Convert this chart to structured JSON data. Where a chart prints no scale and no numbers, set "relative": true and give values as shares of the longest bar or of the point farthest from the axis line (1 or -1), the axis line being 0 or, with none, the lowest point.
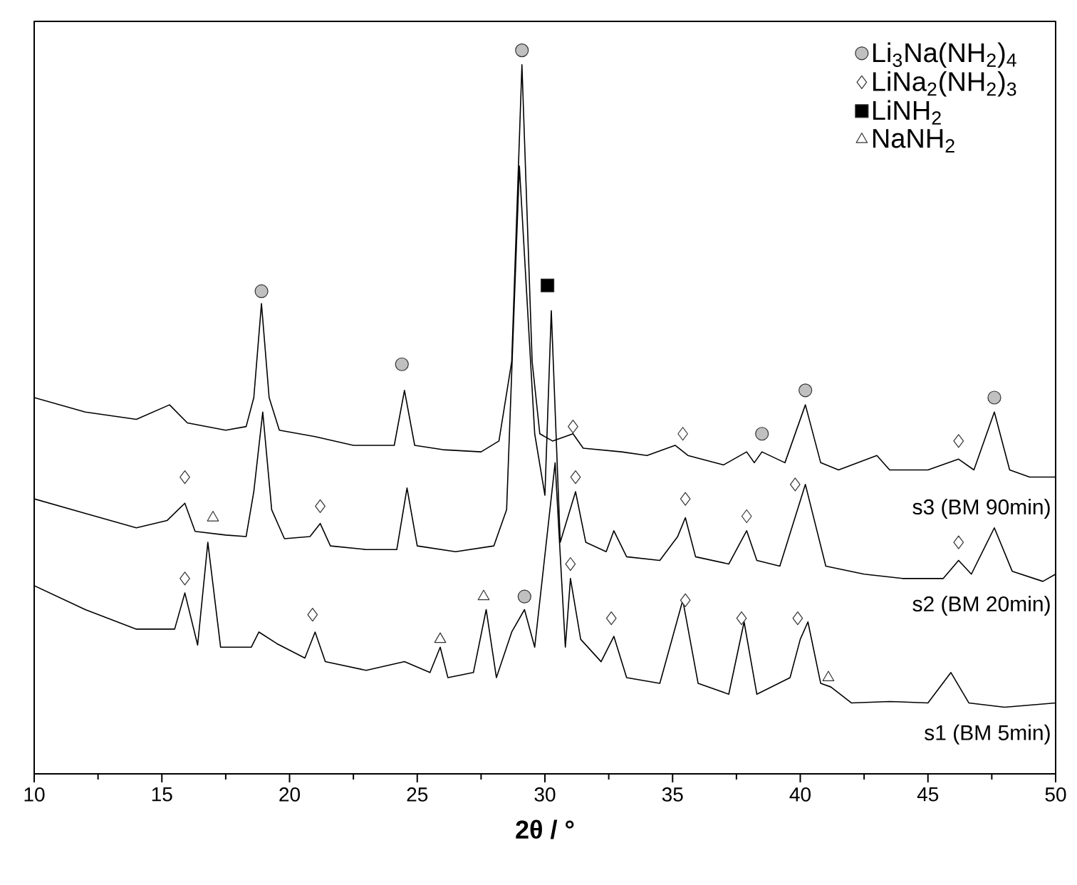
{
  "chart_data": {
    "type": "line",
    "relative": true,
    "xlabel": "2θ / °",
    "xlim": [
      10,
      50
    ],
    "xticks": [
      10,
      15,
      20,
      25,
      30,
      35,
      40,
      45,
      50
    ],
    "legend": "top right",
    "series": [
      {
        "name": "s3 (BM 90min)",
        "color": "#000000",
        "marker": "none",
        "x": [
          10,
          12,
          14,
          15.3,
          16,
          17.5,
          18.3,
          18.6,
          18.9,
          19.2,
          19.6,
          21,
          22.5,
          24.1,
          24.5,
          24.9,
          26,
          27.5,
          28.2,
          28.7,
          29.1,
          29.5,
          29.8,
          30.3,
          31.1,
          31.5,
          33,
          34,
          35.1,
          35.6,
          37,
          37.9,
          38.2,
          38.5,
          39.4,
          40.2,
          40.8,
          41.5,
          43,
          43.5,
          45,
          46.2,
          46.8,
          47.6,
          48.2,
          49,
          50
        ],
        "values": [
          0.52,
          0.5,
          0.49,
          0.51,
          0.485,
          0.475,
          0.48,
          0.52,
          0.65,
          0.52,
          0.475,
          0.466,
          0.454,
          0.454,
          0.53,
          0.454,
          0.448,
          0.445,
          0.46,
          0.57,
          0.98,
          0.57,
          0.47,
          0.46,
          0.47,
          0.45,
          0.445,
          0.44,
          0.454,
          0.44,
          0.427,
          0.445,
          0.43,
          0.445,
          0.43,
          0.51,
          0.43,
          0.42,
          0.44,
          0.42,
          0.42,
          0.435,
          0.42,
          0.5,
          0.42,
          0.41,
          0.41
        ]
      },
      {
        "name": "s2 (BM 20min)",
        "color": "#000000",
        "marker": "none",
        "x": [
          10,
          12,
          14,
          15.2,
          15.9,
          16.3,
          17.5,
          18.3,
          18.6,
          18.95,
          19.3,
          19.8,
          20.8,
          21.2,
          21.6,
          23,
          24.2,
          24.6,
          25,
          26.5,
          28,
          28.5,
          29,
          29.6,
          30,
          30.25,
          30.6,
          31.2,
          31.6,
          32.4,
          32.7,
          33.2,
          34.5,
          35.2,
          35.5,
          35.9,
          37.2,
          37.9,
          38.3,
          39.2,
          40.2,
          41,
          42.5,
          44,
          45.6,
          46.2,
          46.7,
          47.6,
          48.3,
          49.5,
          50
        ],
        "values": [
          0.38,
          0.36,
          0.34,
          0.35,
          0.374,
          0.335,
          0.33,
          0.328,
          0.39,
          0.5,
          0.365,
          0.325,
          0.328,
          0.346,
          0.315,
          0.31,
          0.31,
          0.395,
          0.315,
          0.307,
          0.315,
          0.365,
          0.84,
          0.47,
          0.385,
          0.64,
          0.32,
          0.39,
          0.32,
          0.307,
          0.336,
          0.3,
          0.295,
          0.328,
          0.354,
          0.3,
          0.29,
          0.336,
          0.295,
          0.287,
          0.4,
          0.287,
          0.276,
          0.27,
          0.27,
          0.295,
          0.276,
          0.34,
          0.28,
          0.266,
          0.276
        ]
      },
      {
        "name": "s1 (BM 5min)",
        "color": "#000000",
        "marker": "none",
        "x": [
          10,
          12,
          14,
          15.5,
          15.9,
          16.4,
          16.8,
          17.3,
          18.5,
          18.8,
          19.5,
          20.6,
          21,
          21.4,
          23,
          24.5,
          25.5,
          25.9,
          26.2,
          27.2,
          27.7,
          28.1,
          28.7,
          29.2,
          29.6,
          30.4,
          30.8,
          31,
          31.4,
          32.2,
          32.7,
          33.2,
          34.5,
          35.4,
          36,
          37.2,
          37.8,
          38.3,
          39.6,
          40,
          40.3,
          40.8,
          41.2,
          42,
          43.5,
          45,
          45.9,
          46.6,
          48,
          50
        ],
        "values": [
          0.26,
          0.227,
          0.2,
          0.2,
          0.25,
          0.178,
          0.32,
          0.175,
          0.175,
          0.196,
          0.18,
          0.16,
          0.196,
          0.155,
          0.143,
          0.155,
          0.14,
          0.175,
          0.133,
          0.14,
          0.227,
          0.133,
          0.196,
          0.227,
          0.175,
          0.43,
          0.175,
          0.27,
          0.186,
          0.155,
          0.19,
          0.133,
          0.125,
          0.24,
          0.125,
          0.11,
          0.21,
          0.11,
          0.133,
          0.186,
          0.21,
          0.125,
          0.12,
          0.098,
          0.1,
          0.098,
          0.14,
          0.098,
          0.092,
          0.098
        ]
      },
      {
        "name": "Li$_{3}$Na(NH$_{2}$)$_{4}$",
        "type": "scatter",
        "marker": "circle",
        "color": "#c0c0c0",
        "x": [
          18.9,
          24.4,
          29.1,
          29.2,
          38.5,
          40.2,
          47.6
        ],
        "values": [
          0.667,
          0.566,
          1,
          0.245,
          0.47,
          0.53,
          0.52
        ]
      },
      {
        "name": "LiNa$_{2}$(NH$_{2}$)$_{3}$",
        "type": "scatter",
        "marker": "diamond",
        "color": "#ffffff",
        "x": [
          31.1,
          35.4,
          46.2,
          15.9,
          21.2,
          31.2,
          35.5,
          37.9,
          39.8,
          46.2,
          15.9,
          20.9,
          31.0,
          32.6,
          35.5,
          37.7,
          39.9
        ],
        "values": [
          0.48,
          0.47,
          0.46,
          0.41,
          0.37,
          0.41,
          0.38,
          0.356,
          0.4,
          0.32,
          0.27,
          0.22,
          0.29,
          0.215,
          0.24,
          0.215,
          0.215
        ]
      },
      {
        "name": "LiNH$_{2}$",
        "type": "scatter",
        "marker": "square",
        "color": "#000000",
        "x": [
          30.1
        ],
        "values": [
          0.675
        ]
      },
      {
        "name": "NaNH$_{2}$",
        "type": "scatter",
        "marker": "triangle",
        "color": "#ffffff",
        "x": [
          17.0,
          25.9,
          27.6,
          41.1
        ],
        "values": [
          0.354,
          0.186,
          0.245,
          0.133
        ]
      }
    ]
  }
}
